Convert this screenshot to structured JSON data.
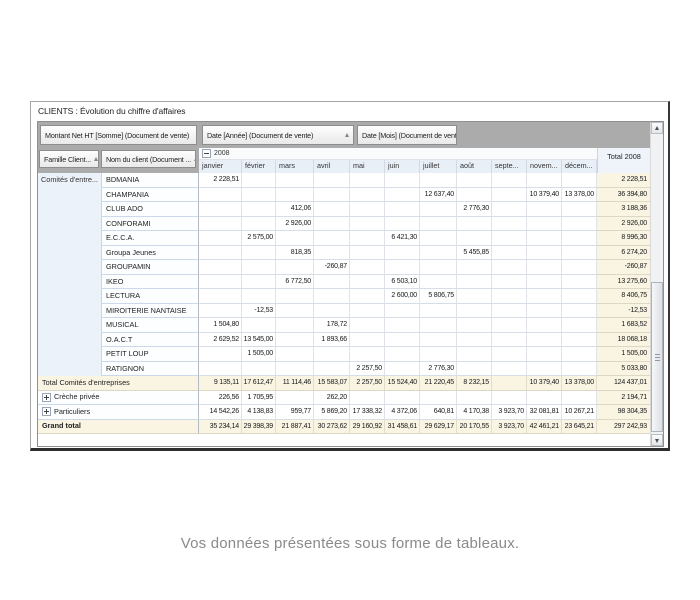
{
  "window": {
    "title": "CLIENTS : Évolution du chiffre d'affaires"
  },
  "caption": "Vos données présentées sous forme de tableaux.",
  "colors": {
    "header_gray": "#ABABAB",
    "total_bg": "#FAF5E3",
    "month_header_bg": "#E9EFF7",
    "caption_gray": "#8A8A8A"
  },
  "pivot": {
    "data_field": "Montant Net HT [Somme] (Document de vente)",
    "column_field_year": "Date [Année] (Document de vente)",
    "column_field_month": "Date [Mois] (Document de vente)",
    "row_field_famille": "Famille Client...",
    "row_field_nom": "Nom du client (Document ...",
    "year_group": "2008",
    "total_header": "Total 2008",
    "months": [
      "janvier",
      "février",
      "mars",
      "avril",
      "mai",
      "juin",
      "juillet",
      "août",
      "septe...",
      "novem...",
      "décem..."
    ],
    "row_group_label": "Comités d'entre...",
    "client_rows": [
      {
        "label": "BDMANIA",
        "cells": [
          "2 228,51",
          "",
          "",
          "",
          "",
          "",
          "",
          "",
          "",
          "",
          ""
        ],
        "total": "2 228,51"
      },
      {
        "label": "CHAMPANIA",
        "cells": [
          "",
          "",
          "",
          "",
          "",
          "",
          "12 637,40",
          "",
          "",
          "10 379,40",
          "13 378,00"
        ],
        "total": "36 394,80"
      },
      {
        "label": "CLUB ADO",
        "cells": [
          "",
          "",
          "412,06",
          "",
          "",
          "",
          "",
          "2 776,30",
          "",
          "",
          ""
        ],
        "total": "3 188,36"
      },
      {
        "label": "CONFORAMI",
        "cells": [
          "",
          "",
          "2 926,00",
          "",
          "",
          "",
          "",
          "",
          "",
          "",
          ""
        ],
        "total": "2 926,00"
      },
      {
        "label": "E.C.C.A.",
        "cells": [
          "",
          "2 575,00",
          "",
          "",
          "",
          "6 421,30",
          "",
          "",
          "",
          "",
          ""
        ],
        "total": "8 996,30"
      },
      {
        "label": "Groupa Jeunes",
        "cells": [
          "",
          "",
          "818,35",
          "",
          "",
          "",
          "",
          "5 455,85",
          "",
          "",
          ""
        ],
        "total": "6 274,20"
      },
      {
        "label": "GROUPAMIN",
        "cells": [
          "",
          "",
          "",
          "-260,87",
          "",
          "",
          "",
          "",
          "",
          "",
          ""
        ],
        "total": "-260,87"
      },
      {
        "label": "IKEO",
        "cells": [
          "",
          "",
          "6 772,50",
          "",
          "",
          "6 503,10",
          "",
          "",
          "",
          "",
          ""
        ],
        "total": "13 275,60"
      },
      {
        "label": "LECTURA",
        "cells": [
          "",
          "",
          "",
          "",
          "",
          "2 600,00",
          "5 806,75",
          "",
          "",
          "",
          ""
        ],
        "total": "8 406,75"
      },
      {
        "label": "MIROITERIE NANTAISE",
        "cells": [
          "",
          "-12,53",
          "",
          "",
          "",
          "",
          "",
          "",
          "",
          "",
          ""
        ],
        "total": "-12,53"
      },
      {
        "label": "MUSICAL",
        "cells": [
          "1 504,80",
          "",
          "",
          "178,72",
          "",
          "",
          "",
          "",
          "",
          "",
          ""
        ],
        "total": "1 683,52"
      },
      {
        "label": "O.A.C.T",
        "cells": [
          "2 629,52",
          "13 545,00",
          "",
          "1 893,66",
          "",
          "",
          "",
          "",
          "",
          "",
          ""
        ],
        "total": "18 068,18"
      },
      {
        "label": "PETIT LOUP",
        "cells": [
          "",
          "1 505,00",
          "",
          "",
          "",
          "",
          "",
          "",
          "",
          "",
          ""
        ],
        "total": "1 505,00"
      },
      {
        "label": "RATIGNON",
        "cells": [
          "",
          "",
          "",
          "",
          "2 257,50",
          "",
          "2 776,30",
          "",
          "",
          "",
          ""
        ],
        "total": "5 033,80"
      }
    ],
    "summary_rows": [
      {
        "label": "Total Comités d'entreprises",
        "style": "total",
        "expand": null,
        "cells": [
          "9 135,11",
          "17 612,47",
          "11 114,46",
          "15 583,07",
          "2 257,50",
          "15 524,40",
          "21 220,45",
          "8 232,15",
          "",
          "10 379,40",
          "13 378,00"
        ],
        "total": "124 437,01"
      },
      {
        "label": "Crèche privée",
        "style": "normal",
        "expand": "plus",
        "cells": [
          "226,56",
          "1 705,95",
          "",
          "262,20",
          "",
          "",
          "",
          "",
          "",
          "",
          ""
        ],
        "total": "2 194,71"
      },
      {
        "label": "Particuliers",
        "style": "normal",
        "expand": "plus",
        "cells": [
          "14 542,26",
          "4 138,83",
          "959,77",
          "5 869,20",
          "17 338,32",
          "4 372,06",
          "640,81",
          "4 170,38",
          "3 923,70",
          "32 081,81",
          "10 267,21"
        ],
        "total": "98 304,35"
      },
      {
        "label": "Grand total",
        "style": "grand",
        "expand": null,
        "cells": [
          "35 234,14",
          "29 398,39",
          "21 887,41",
          "30 273,62",
          "29 160,92",
          "31 458,61",
          "29 629,17",
          "20 170,55",
          "3 923,70",
          "42 461,21",
          "23 645,21"
        ],
        "total": "297 242,93"
      }
    ]
  }
}
